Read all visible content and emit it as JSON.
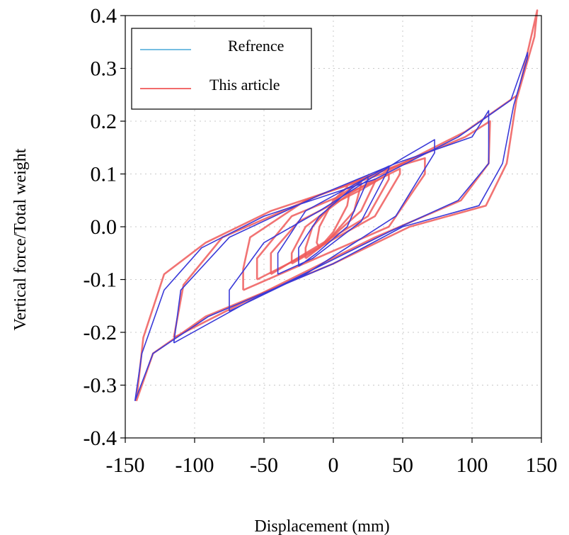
{
  "chart_data": {
    "type": "line",
    "title": "",
    "xlabel": "Displacement (mm)",
    "ylabel": "Vertical force/Total weight",
    "xlim": [
      -150,
      150
    ],
    "ylim": [
      -0.4,
      0.4
    ],
    "x_ticks": [
      -150,
      -100,
      -50,
      0,
      50,
      100,
      150
    ],
    "x_tick_labels": [
      "-150",
      "-100",
      "-50",
      "0",
      "50",
      "100",
      "150"
    ],
    "y_ticks": [
      -0.4,
      -0.3,
      -0.2,
      -0.1,
      0.0,
      0.1,
      0.2,
      0.3,
      0.4
    ],
    "y_tick_labels": [
      "-0.4",
      "-0.3",
      "-0.2",
      "-0.1",
      "0.0",
      "0.1",
      "0.2",
      "0.3",
      "0.4"
    ],
    "grid": true,
    "legend_position": "top-left",
    "series": [
      {
        "name": "Refrence",
        "color": "#3a3ad8",
        "legend_color": "#49a8d8",
        "loops": [
          {
            "x": [
              -25,
              -12,
              10,
              25,
              25,
              12,
              -10,
              -25,
              -25
            ],
            "y": [
              -0.075,
              -0.05,
              0.0,
              0.09,
              0.095,
              0.07,
              0.02,
              -0.04,
              -0.075
            ]
          },
          {
            "x": [
              -40,
              -15,
              20,
              40,
              40,
              15,
              -20,
              -40,
              -40
            ],
            "y": [
              -0.09,
              -0.06,
              0.01,
              0.11,
              0.115,
              0.08,
              0.03,
              -0.05,
              -0.09
            ]
          },
          {
            "x": [
              -75,
              -20,
              45,
              73,
              73,
              50,
              20,
              -10,
              -50,
              -75,
              -75
            ],
            "y": [
              -0.16,
              -0.09,
              0.02,
              0.14,
              0.165,
              0.13,
              0.08,
              0.03,
              -0.03,
              -0.12,
              -0.16
            ]
          },
          {
            "x": [
              -115,
              -60,
              40,
              90,
              112,
              112,
              100,
              45,
              -10,
              -75,
              -110,
              -115
            ],
            "y": [
              -0.22,
              -0.14,
              -0.01,
              0.05,
              0.12,
              0.22,
              0.17,
              0.12,
              0.06,
              -0.02,
              -0.12,
              -0.22
            ]
          },
          {
            "x": [
              -143,
              -130,
              -90,
              0,
              50,
              105,
              122,
              130,
              140,
              140,
              128,
              90,
              30,
              -50,
              -95,
              -122,
              -138,
              -143
            ],
            "y": [
              -0.33,
              -0.24,
              -0.17,
              -0.07,
              0.0,
              0.04,
              0.12,
              0.23,
              0.32,
              0.33,
              0.24,
              0.17,
              0.09,
              0.02,
              -0.04,
              -0.12,
              -0.24,
              -0.33
            ]
          }
        ]
      },
      {
        "name": "This article",
        "color": "#ee5a5a",
        "legend_color": "#ee3a3a",
        "loops": [
          {
            "x": [
              -10,
              0,
              10,
              12,
              10,
              0,
              -10,
              -12,
              -10
            ],
            "y": [
              -0.04,
              -0.01,
              0.04,
              0.07,
              0.075,
              0.05,
              0.0,
              -0.03,
              -0.04
            ]
          },
          {
            "x": [
              -20,
              -5,
              15,
              20,
              20,
              5,
              -15,
              -20,
              -20
            ],
            "y": [
              -0.06,
              -0.03,
              0.03,
              0.08,
              0.085,
              0.06,
              0.0,
              -0.04,
              -0.06
            ]
          },
          {
            "x": [
              -30,
              -10,
              20,
              30,
              30,
              10,
              -20,
              -30,
              -30
            ],
            "y": [
              -0.07,
              -0.04,
              0.03,
              0.085,
              0.09,
              0.06,
              0.0,
              -0.05,
              -0.07
            ]
          },
          {
            "x": [
              -45,
              -20,
              25,
              40,
              40,
              20,
              -25,
              -45,
              -45
            ],
            "y": [
              -0.09,
              -0.05,
              0.02,
              0.09,
              0.1,
              0.07,
              0.01,
              -0.05,
              -0.09
            ]
          },
          {
            "x": [
              -55,
              -25,
              30,
              48,
              48,
              25,
              -30,
              -55,
              -55
            ],
            "y": [
              -0.1,
              -0.06,
              0.02,
              0.1,
              0.11,
              0.08,
              0.02,
              -0.06,
              -0.1
            ]
          },
          {
            "x": [
              -65,
              -30,
              40,
              66,
              66,
              40,
              -20,
              -60,
              -65,
              -65
            ],
            "y": [
              -0.12,
              -0.08,
              0.0,
              0.1,
              0.13,
              0.11,
              0.05,
              -0.02,
              -0.08,
              -0.12
            ]
          },
          {
            "x": [
              -115,
              -70,
              30,
              92,
              112,
              113,
              95,
              40,
              -10,
              -80,
              -108,
              -115
            ],
            "y": [
              -0.21,
              -0.15,
              -0.02,
              0.05,
              0.12,
              0.2,
              0.17,
              0.11,
              0.06,
              -0.02,
              -0.11,
              -0.21
            ]
          },
          {
            "x": [
              -142,
              -130,
              -92,
              0,
              55,
              110,
              125,
              132,
              145,
              147,
              133,
              95,
              35,
              -45,
              -92,
              -122,
              -137,
              -142
            ],
            "y": [
              -0.33,
              -0.24,
              -0.17,
              -0.07,
              0.0,
              0.04,
              0.12,
              0.24,
              0.36,
              0.41,
              0.25,
              0.18,
              0.1,
              0.03,
              -0.03,
              -0.09,
              -0.21,
              -0.33
            ]
          }
        ]
      }
    ]
  }
}
